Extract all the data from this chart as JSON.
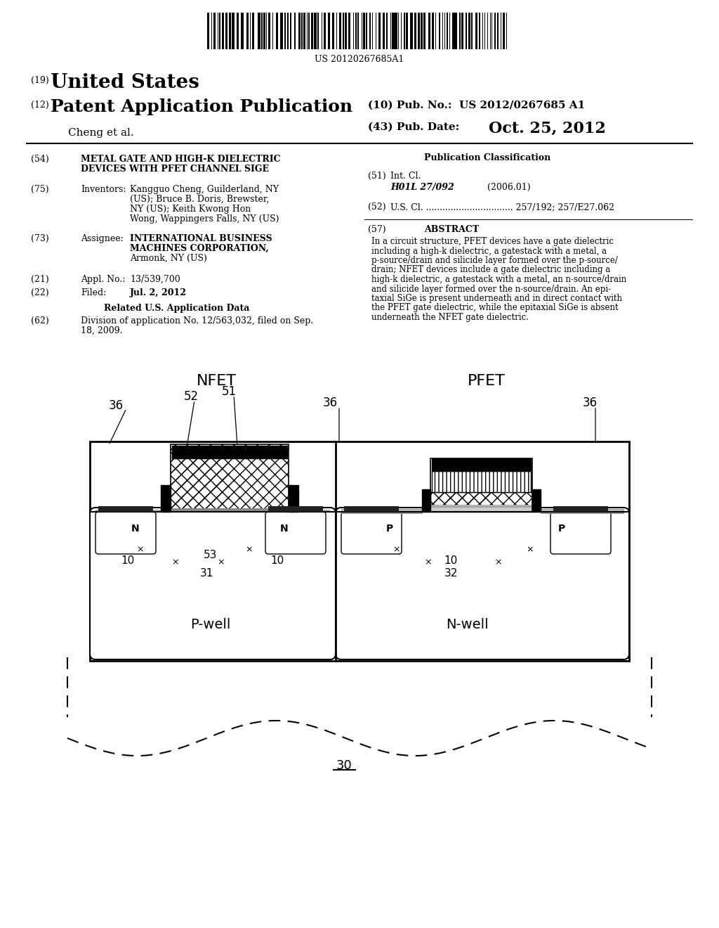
{
  "bg_color": "#ffffff",
  "barcode_text": "US 20120267685A1",
  "title_19": "(19)",
  "title_us": "United States",
  "title_12": "(12)",
  "title_pat": "Patent Application Publication",
  "title_10": "(10) Pub. No.:  US 2012/0267685 A1",
  "author": "Cheng et al.",
  "title_43": "(43) Pub. Date:",
  "pub_date": "Oct. 25, 2012",
  "field54_label": "(54)",
  "field54_line1": "METAL GATE AND HIGH-K DIELECTRIC",
  "field54_line2": "DEVICES WITH PFET CHANNEL SIGE",
  "field75_label": "(75)",
  "field75_title": "Inventors:",
  "field75_line1": "Kangguo Cheng, Guilderland, NY",
  "field75_line2": "(US); Bruce B. Doris, Brewster,",
  "field75_line3": "NY (US); Keith Kwong Hon",
  "field75_line4": "Wong, Wappingers Falls, NY (US)",
  "field73_label": "(73)",
  "field73_title": "Assignee:",
  "field73_line1": "INTERNATIONAL BUSINESS",
  "field73_line2": "MACHINES CORPORATION,",
  "field73_line3": "Armonk, NY (US)",
  "field21_label": "(21)",
  "field21_title": "Appl. No.:",
  "field21_text": "13/539,700",
  "field22_label": "(22)",
  "field22_title": "Filed:",
  "field22_text": "Jul. 2, 2012",
  "related_title": "Related U.S. Application Data",
  "field62_label": "(62)",
  "field62_line1": "Division of application No. 12/563,032, filed on Sep.",
  "field62_line2": "18, 2009.",
  "pub_class_title": "Publication Classification",
  "field51_label": "(51)",
  "field51_title": "Int. Cl.",
  "field51_class": "H01L 27/092",
  "field51_year": "(2006.01)",
  "field52_label": "(52)",
  "field52_text": "U.S. Cl. ................................ 257/192; 257/E27.062",
  "field57_label": "(57)",
  "field57_title": "ABSTRACT",
  "abstract_lines": [
    "In a circuit structure, PFET devices have a gate dielectric",
    "including a high-k dielectric, a gatestack with a metal, a",
    "p-source/drain and silicide layer formed over the p-source/",
    "drain; NFET devices include a gate dielectric including a",
    "high-k dielectric, a gatestack with a metal, an n-source/drain",
    "and silicide layer formed over the n-source/drain. An epi-",
    "taxial SiGe is present underneath and in direct contact with",
    "the PFET gate dielectric, while the epitaxial SiGe is absent",
    "underneath the NFET gate dielectric."
  ]
}
